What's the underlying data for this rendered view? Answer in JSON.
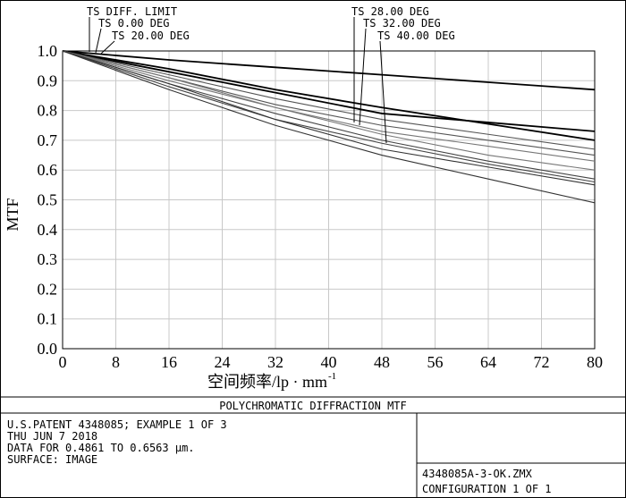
{
  "chart_data": {
    "type": "line",
    "title": "POLYCHROMATIC DIFFRACTION MTF",
    "xlabel": "空间频率/lp · mm",
    "xlabel_sup": "-1",
    "ylabel": "MTF",
    "x": [
      0,
      16,
      32,
      48,
      64,
      80
    ],
    "xlim": [
      0,
      80
    ],
    "xticks": [
      0,
      8,
      16,
      24,
      32,
      40,
      48,
      56,
      64,
      72,
      80
    ],
    "ylim": [
      0,
      1
    ],
    "yticks": [
      {
        "value": 0,
        "label": "0.0"
      },
      {
        "value": 0.1,
        "label": "0.1"
      },
      {
        "value": 0.2,
        "label": "0.2"
      },
      {
        "value": 0.3,
        "label": "0.3"
      },
      {
        "value": 0.4,
        "label": "0.4"
      },
      {
        "value": 0.5,
        "label": "0.5"
      },
      {
        "value": 0.6,
        "label": "0.6"
      },
      {
        "value": 0.7,
        "label": "0.7"
      },
      {
        "value": 0.8,
        "label": "0.8"
      },
      {
        "value": 0.9,
        "label": "0.9"
      },
      {
        "value": 1,
        "label": "1.0"
      }
    ],
    "grid": true,
    "series": [
      {
        "name": "TS DIFF. LIMIT",
        "color": "#000000",
        "values": [
          1,
          0.97,
          0.945,
          0.92,
          0.895,
          0.87
        ]
      },
      {
        "name": "TS 0.00 DEG",
        "color": "#000000",
        "values": [
          1,
          0.94,
          0.87,
          0.81,
          0.755,
          0.7
        ],
        "values_s": [
          1,
          0.93,
          0.86,
          0.79,
          0.76,
          0.73
        ]
      },
      {
        "name": "TS 20.00 DEG",
        "color": "#555555",
        "values": [
          1,
          0.92,
          0.84,
          0.77,
          0.72,
          0.67
        ],
        "values_s": [
          1,
          0.91,
          0.82,
          0.75,
          0.7,
          0.65
        ]
      },
      {
        "name": "TS 28.00 DEG",
        "color": "#777777",
        "values": [
          1,
          0.9,
          0.81,
          0.73,
          0.68,
          0.63
        ],
        "values_s": [
          1,
          0.91,
          0.81,
          0.72,
          0.65,
          0.6
        ]
      },
      {
        "name": "TS 32.00 DEG",
        "color": "#444444",
        "values": [
          1,
          0.89,
          0.79,
          0.7,
          0.63,
          0.57
        ],
        "values_s": [
          1,
          0.88,
          0.77,
          0.69,
          0.62,
          0.56
        ]
      },
      {
        "name": "TS 40.00 DEG",
        "color": "#333333",
        "values": [
          1,
          0.89,
          0.77,
          0.67,
          0.61,
          0.55
        ],
        "values_s": [
          1,
          0.87,
          0.75,
          0.65,
          0.57,
          0.49
        ]
      }
    ]
  },
  "footer": {
    "info": [
      "U.S.PATENT 4348085; EXAMPLE 1 OF 3",
      "THU JUN 7 2018",
      "DATA FOR 0.4861 TO 0.6563 µm.",
      "SURFACE: IMAGE"
    ],
    "file": "4348085A-3-OK.ZMX",
    "config": "CONFIGURATION 1 OF 1"
  }
}
